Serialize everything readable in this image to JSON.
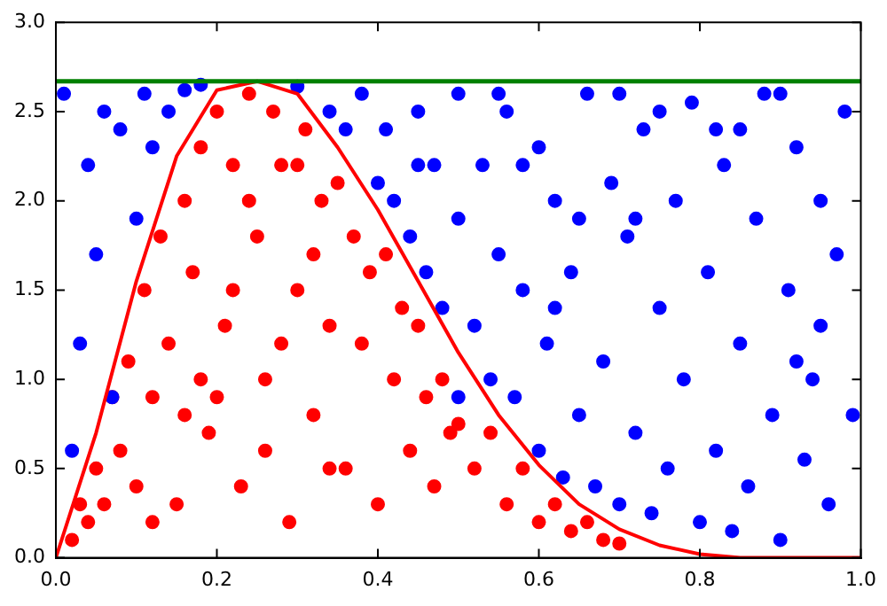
{
  "chart_data": {
    "type": "scatter",
    "xlim": [
      0,
      1
    ],
    "ylim": [
      0,
      3
    ],
    "xticks": [
      {
        "value": 0,
        "label": "0.0"
      },
      {
        "value": 0.2,
        "label": "0.2"
      },
      {
        "value": 0.4,
        "label": "0.4"
      },
      {
        "value": 0.6,
        "label": "0.6"
      },
      {
        "value": 0.8,
        "label": "0.8"
      },
      {
        "value": 1,
        "label": "1.0"
      }
    ],
    "yticks": [
      {
        "value": 0,
        "label": "0.0"
      },
      {
        "value": 0.5,
        "label": "0.5"
      },
      {
        "value": 1,
        "label": "1.0"
      },
      {
        "value": 1.5,
        "label": "1.5"
      },
      {
        "value": 2,
        "label": "2.0"
      },
      {
        "value": 2.5,
        "label": "2.5"
      },
      {
        "value": 3,
        "label": "3.0"
      }
    ],
    "grid": false,
    "legend": false,
    "marker": "circle",
    "series": [
      {
        "type": "scatter",
        "color": "#0000ff",
        "x": [
          0.01,
          0.02,
          0.03,
          0.04,
          0.05,
          0.06,
          0.07,
          0.08,
          0.1,
          0.11,
          0.12,
          0.14,
          0.16,
          0.18,
          0.3,
          0.34,
          0.36,
          0.38,
          0.4,
          0.41,
          0.42,
          0.44,
          0.45,
          0.46,
          0.47,
          0.48,
          0.5,
          0.5,
          0.52,
          0.53,
          0.54,
          0.55,
          0.56,
          0.57,
          0.58,
          0.6,
          0.6,
          0.61,
          0.62,
          0.63,
          0.64,
          0.65,
          0.66,
          0.67,
          0.68,
          0.69,
          0.7,
          0.71,
          0.72,
          0.73,
          0.74,
          0.75,
          0.76,
          0.77,
          0.78,
          0.79,
          0.8,
          0.81,
          0.82,
          0.83,
          0.84,
          0.85,
          0.86,
          0.87,
          0.88,
          0.89,
          0.9,
          0.91,
          0.92,
          0.93,
          0.94,
          0.95,
          0.96,
          0.97,
          0.98,
          0.99,
          0.45,
          0.55,
          0.65,
          0.75,
          0.85,
          0.95,
          0.62,
          0.72,
          0.82,
          0.92,
          0.5,
          0.7,
          0.9,
          0.58
        ],
        "values": [
          2.6,
          0.6,
          1.2,
          2.2,
          1.7,
          2.5,
          0.9,
          2.4,
          1.9,
          2.6,
          2.3,
          2.5,
          2.62,
          2.65,
          2.64,
          2.5,
          2.4,
          2.6,
          2.1,
          2.4,
          2.0,
          1.8,
          2.5,
          1.6,
          2.2,
          1.4,
          1.9,
          2.6,
          1.3,
          2.2,
          1.0,
          1.7,
          2.5,
          0.9,
          1.5,
          0.6,
          2.3,
          1.2,
          2.0,
          0.45,
          1.6,
          0.8,
          2.6,
          0.4,
          1.1,
          2.1,
          0.3,
          1.8,
          0.7,
          2.4,
          0.25,
          1.4,
          0.5,
          2.0,
          1.0,
          2.55,
          0.2,
          1.6,
          0.6,
          2.2,
          0.15,
          1.2,
          0.4,
          1.9,
          2.6,
          0.8,
          0.1,
          1.5,
          2.3,
          0.55,
          1.0,
          2.0,
          0.3,
          1.7,
          2.5,
          0.8,
          2.2,
          2.6,
          1.9,
          2.5,
          2.4,
          1.3,
          1.4,
          1.9,
          2.4,
          1.1,
          0.9,
          2.6,
          2.6,
          2.2
        ]
      },
      {
        "type": "scatter",
        "color": "#ff0000",
        "x": [
          0.02,
          0.03,
          0.04,
          0.05,
          0.06,
          0.07,
          0.08,
          0.09,
          0.1,
          0.11,
          0.12,
          0.13,
          0.14,
          0.15,
          0.16,
          0.17,
          0.18,
          0.19,
          0.2,
          0.21,
          0.22,
          0.23,
          0.24,
          0.25,
          0.26,
          0.27,
          0.28,
          0.29,
          0.3,
          0.31,
          0.32,
          0.33,
          0.34,
          0.35,
          0.36,
          0.37,
          0.38,
          0.39,
          0.4,
          0.41,
          0.42,
          0.43,
          0.44,
          0.45,
          0.46,
          0.47,
          0.48,
          0.49,
          0.5,
          0.52,
          0.54,
          0.56,
          0.58,
          0.6,
          0.62,
          0.64,
          0.66,
          0.68,
          0.7,
          0.12,
          0.18,
          0.22,
          0.26,
          0.3,
          0.34,
          0.2,
          0.28,
          0.24,
          0.32,
          0.16
        ],
        "values": [
          0.1,
          0.3,
          0.2,
          0.5,
          0.3,
          0.9,
          0.6,
          1.1,
          0.4,
          1.5,
          0.9,
          1.8,
          1.2,
          0.3,
          2.0,
          1.6,
          2.3,
          0.7,
          2.5,
          1.3,
          2.2,
          0.4,
          2.6,
          1.8,
          1.0,
          2.5,
          2.2,
          0.2,
          1.5,
          2.4,
          0.8,
          2.0,
          1.3,
          2.1,
          0.5,
          1.8,
          1.2,
          1.6,
          0.3,
          1.7,
          1.0,
          1.4,
          0.6,
          1.3,
          0.9,
          0.4,
          1.0,
          0.7,
          0.75,
          0.5,
          0.7,
          0.3,
          0.5,
          0.2,
          0.3,
          0.15,
          0.2,
          0.1,
          0.08,
          0.2,
          1.0,
          1.5,
          0.6,
          2.2,
          0.5,
          0.9,
          1.2,
          2.0,
          1.7,
          0.8
        ]
      },
      {
        "type": "line",
        "color": "#ff0000",
        "marker": "none",
        "x": [
          0,
          0.05,
          0.1,
          0.15,
          0.2,
          0.25,
          0.3,
          0.35,
          0.4,
          0.45,
          0.5,
          0.55,
          0.6,
          0.65,
          0.7,
          0.75,
          0.8,
          0.85,
          0.9,
          0.95,
          1.0
        ],
        "values": [
          0,
          0.7,
          1.55,
          2.25,
          2.62,
          2.67,
          2.6,
          2.3,
          1.95,
          1.55,
          1.15,
          0.8,
          0.52,
          0.3,
          0.16,
          0.07,
          0.02,
          0,
          0,
          0,
          0
        ]
      }
    ],
    "ref_lines": [
      {
        "axis": "y",
        "value": 2.67,
        "color": "#008000"
      }
    ]
  }
}
